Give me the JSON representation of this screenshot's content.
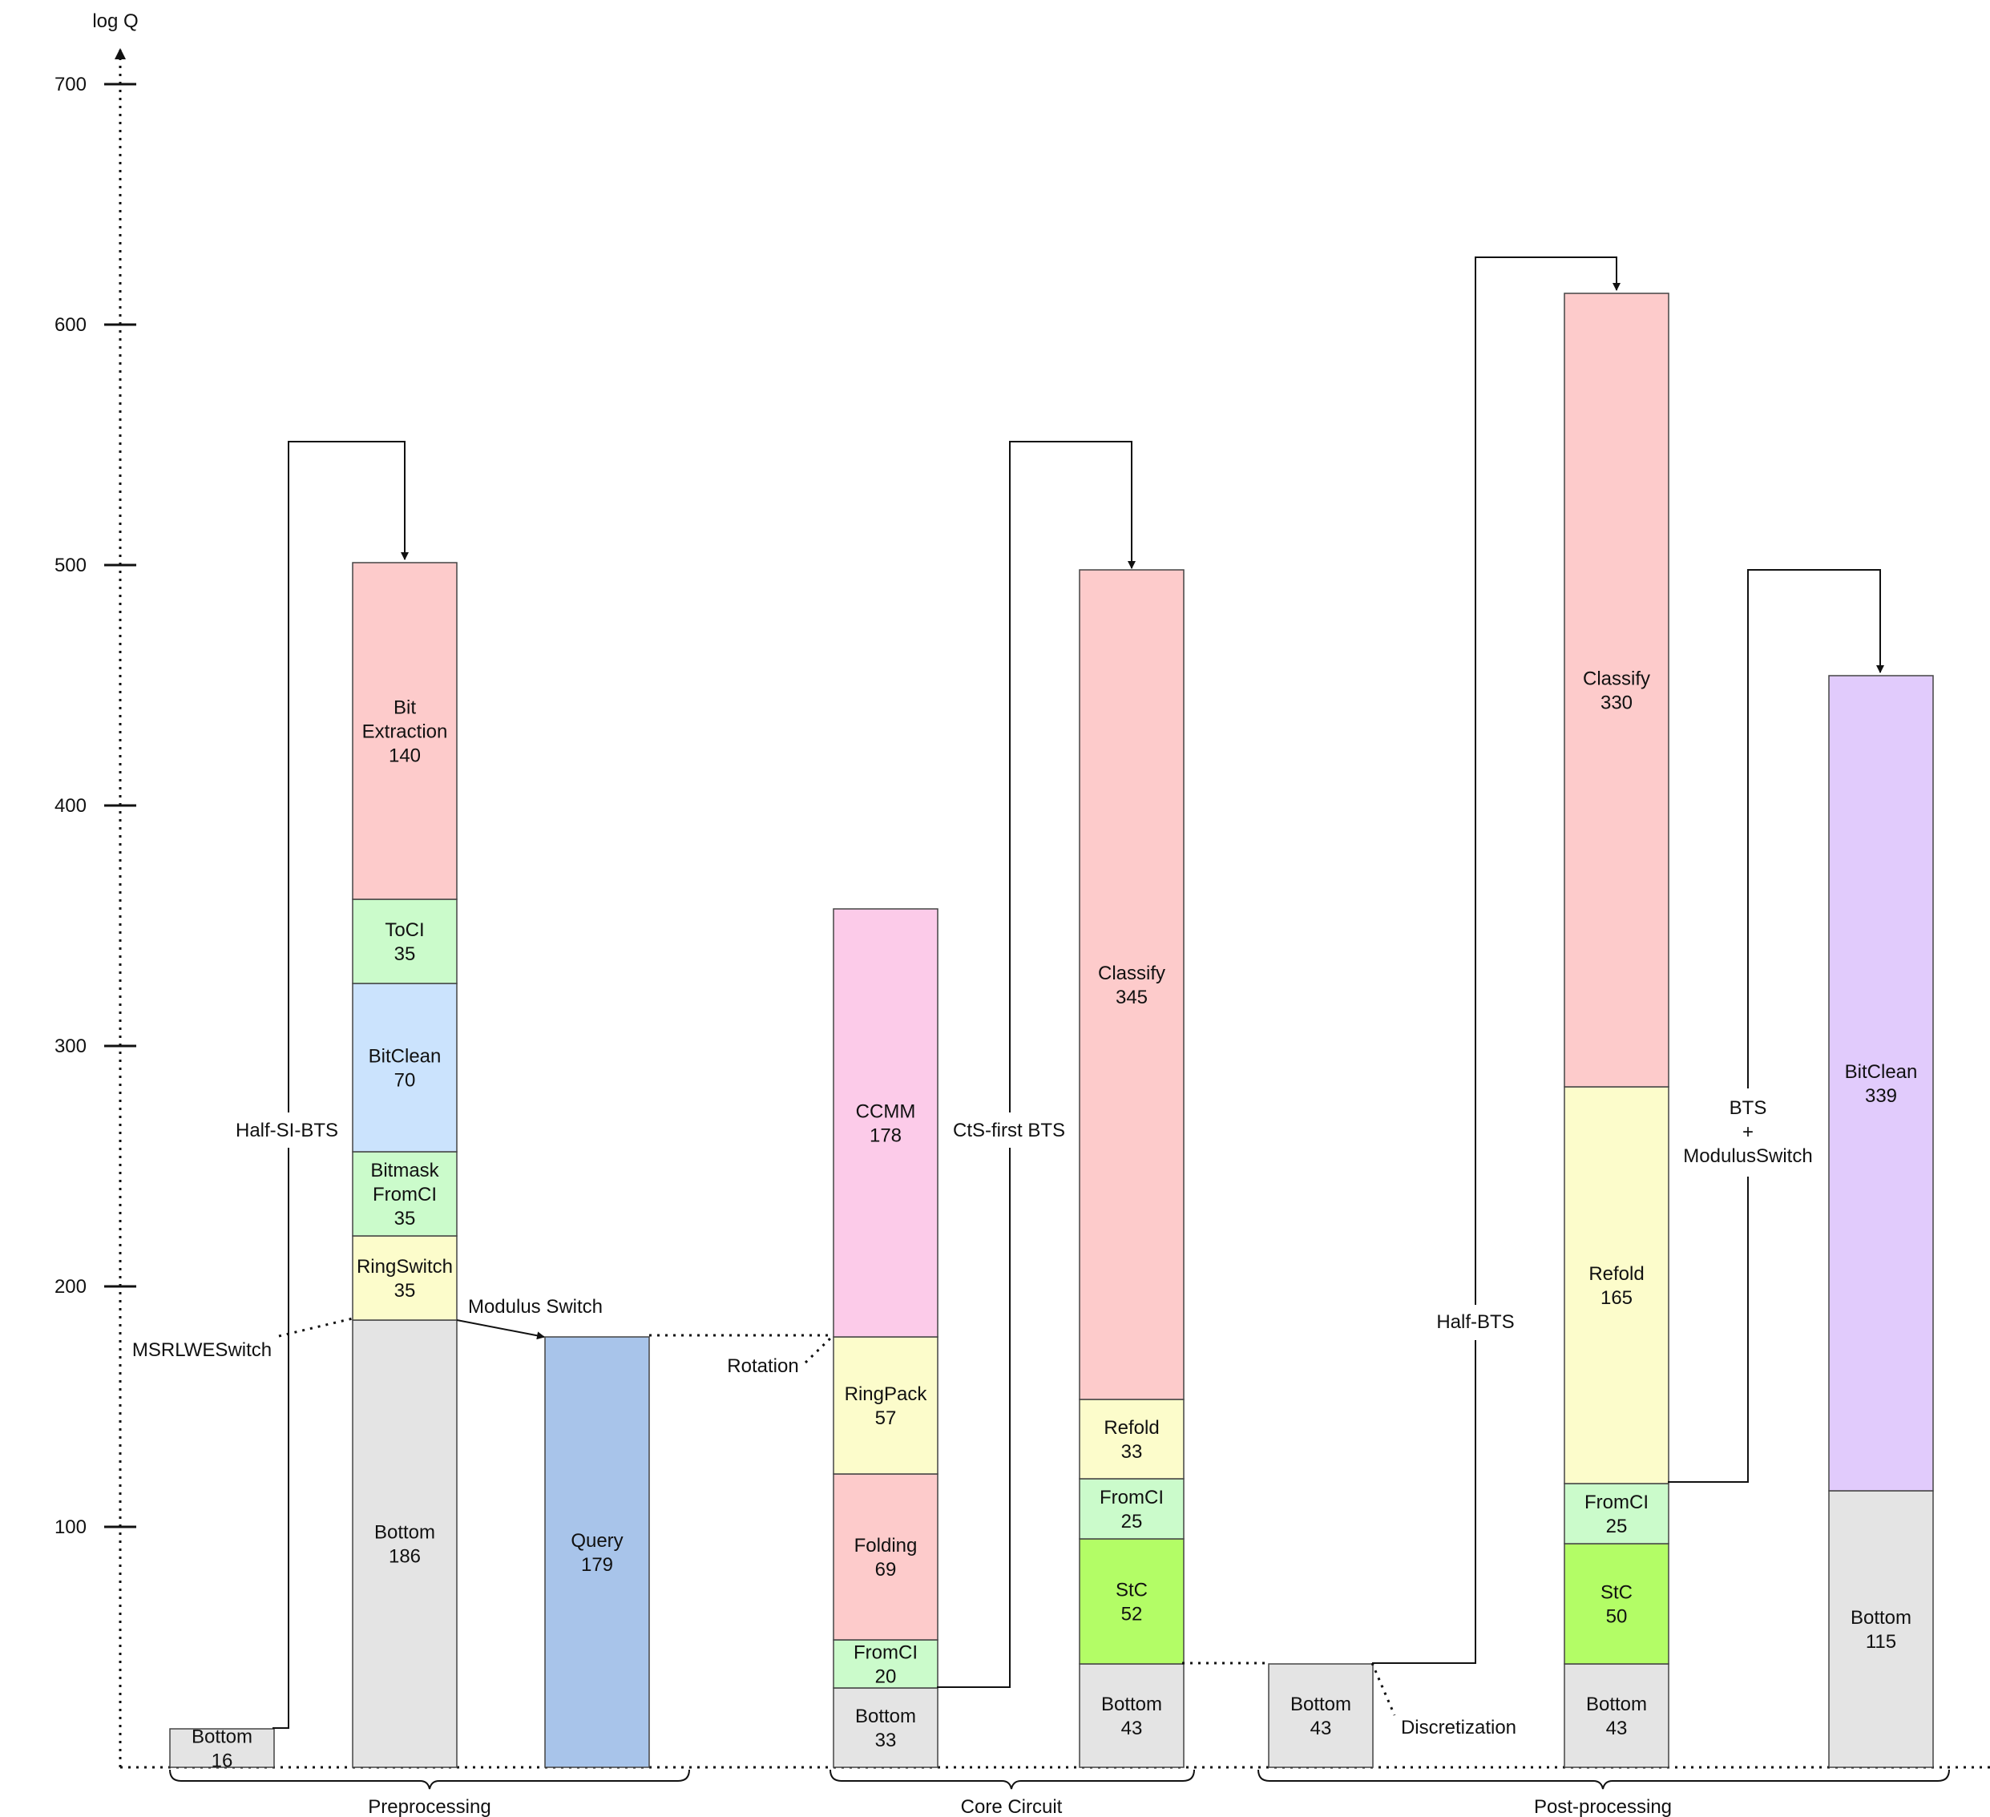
{
  "axis": {
    "label": "log Q",
    "ticks": [
      100,
      200,
      300,
      400,
      500,
      600,
      700
    ],
    "max": 700
  },
  "colors": {
    "gray": "#e4e4e4",
    "red": "#fdcbcb",
    "green": "#cbfbcb",
    "blue": "#cbe3fd",
    "yellow": "#fcfccb",
    "pink": "#fccbe9",
    "query": "#a8c4ea",
    "lime": "#b3fd66",
    "purple": "#e1cbfc",
    "stroke": "#444444"
  },
  "columns": [
    {
      "id": "col-pre-bottom",
      "segments": [
        {
          "name": "Bottom",
          "value": 16,
          "label": [
            "Bottom",
            "16"
          ],
          "color": "gray"
        }
      ]
    },
    {
      "id": "col-pre-bts",
      "segments": [
        {
          "name": "Bottom",
          "value": 186,
          "label": [
            "Bottom",
            "186"
          ],
          "color": "gray"
        },
        {
          "name": "RingSwitch",
          "value": 35,
          "label": [
            "RingSwitch",
            "35"
          ],
          "color": "yellow"
        },
        {
          "name": "Bitmask FromCI",
          "value": 35,
          "label": [
            "Bitmask",
            "FromCI",
            "35"
          ],
          "color": "green"
        },
        {
          "name": "BitClean",
          "value": 70,
          "label": [
            "BitClean",
            "70"
          ],
          "color": "blue"
        },
        {
          "name": "ToCI",
          "value": 35,
          "label": [
            "ToCI",
            "35"
          ],
          "color": "green"
        },
        {
          "name": "Bit Extraction",
          "value": 140,
          "label": [
            "Bit",
            "Extraction",
            "140"
          ],
          "color": "red"
        }
      ]
    },
    {
      "id": "col-query",
      "segments": [
        {
          "name": "Query",
          "value": 179,
          "label": [
            "Query",
            "179"
          ],
          "color": "query"
        }
      ]
    },
    {
      "id": "col-core-1",
      "segments": [
        {
          "name": "Bottom",
          "value": 33,
          "label": [
            "Bottom",
            "33"
          ],
          "color": "gray"
        },
        {
          "name": "FromCI",
          "value": 20,
          "label": [
            "FromCI",
            "20"
          ],
          "color": "green"
        },
        {
          "name": "Folding",
          "value": 69,
          "label": [
            "Folding",
            "69"
          ],
          "color": "red"
        },
        {
          "name": "RingPack",
          "value": 57,
          "label": [
            "RingPack",
            "57"
          ],
          "color": "yellow"
        },
        {
          "name": "CCMM",
          "value": 178,
          "label": [
            "CCMM",
            "178"
          ],
          "color": "pink"
        }
      ]
    },
    {
      "id": "col-core-2",
      "segments": [
        {
          "name": "Bottom",
          "value": 43,
          "label": [
            "Bottom",
            "43"
          ],
          "color": "gray"
        },
        {
          "name": "StC",
          "value": 52,
          "label": [
            "StC",
            "52"
          ],
          "color": "lime"
        },
        {
          "name": "FromCI",
          "value": 25,
          "label": [
            "FromCI",
            "25"
          ],
          "color": "green"
        },
        {
          "name": "Refold",
          "value": 33,
          "label": [
            "Refold",
            "33"
          ],
          "color": "yellow"
        },
        {
          "name": "Classify",
          "value": 345,
          "label": [
            "Classify",
            "345"
          ],
          "color": "red"
        }
      ]
    },
    {
      "id": "col-post-bottom",
      "segments": [
        {
          "name": "Bottom",
          "value": 43,
          "label": [
            "Bottom",
            "43"
          ],
          "color": "gray"
        }
      ]
    },
    {
      "id": "col-post-1",
      "segments": [
        {
          "name": "Bottom",
          "value": 43,
          "label": [
            "Bottom",
            "43"
          ],
          "color": "gray"
        },
        {
          "name": "StC",
          "value": 50,
          "label": [
            "StC",
            "50"
          ],
          "color": "lime"
        },
        {
          "name": "FromCI",
          "value": 25,
          "label": [
            "FromCI",
            "25"
          ],
          "color": "green"
        },
        {
          "name": "Refold",
          "value": 165,
          "label": [
            "Refold",
            "165"
          ],
          "color": "yellow"
        },
        {
          "name": "Classify",
          "value": 330,
          "label": [
            "Classify",
            "330"
          ],
          "color": "red"
        }
      ]
    },
    {
      "id": "col-post-2",
      "segments": [
        {
          "name": "Bottom",
          "value": 115,
          "label": [
            "Bottom",
            "115"
          ],
          "color": "gray"
        },
        {
          "name": "BitClean",
          "value": 339,
          "label": [
            "BitClean",
            "339"
          ],
          "color": "purple"
        }
      ]
    }
  ],
  "annotations": {
    "half_si_bts": "Half-SI-BTS",
    "msrlwe_switch": "MSRLWESwitch",
    "modulus_switch": "Modulus Switch",
    "rotation": "Rotation",
    "cts_first_bts": "CtS-first BTS",
    "discretization": "Discretization",
    "half_bts": "Half-BTS",
    "bts_modswitch": [
      "BTS",
      "+",
      "ModulusSwitch"
    ]
  },
  "phases": [
    "Preprocessing",
    "Core Circuit",
    "Post-processing"
  ]
}
